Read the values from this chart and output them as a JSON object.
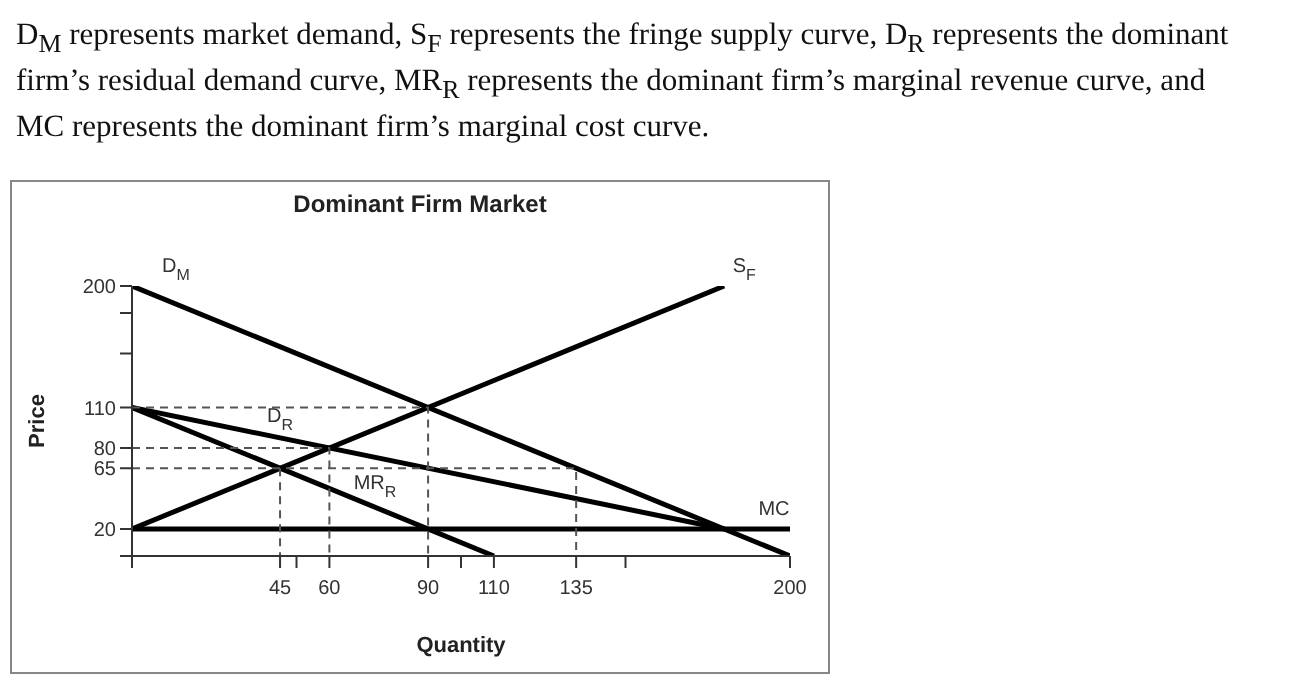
{
  "chart_data": {
    "type": "line",
    "title": "Dominant Firm Market",
    "subtitle": "D$_{M}$ represents market demand, S$_{F}$ represents the fringe supply curve, D$_{R}$ represents the dominant firm’s residual demand curve, MR$_{R}$ represents the dominant firm’s marginal revenue curve, and MC represents the dominant firm’s marginal cost curve.",
    "xlabel": "Quantity",
    "ylabel": "Price",
    "xlim": [
      0,
      200
    ],
    "ylim": [
      0,
      200
    ],
    "xticks": [
      {
        "value": 0,
        "label": null
      },
      45,
      {
        "value": 50,
        "label": null
      },
      60,
      90,
      {
        "value": 100,
        "label": null
      },
      110,
      135,
      {
        "value": 150,
        "label": null
      },
      200
    ],
    "yticks": [
      {
        "value": 0,
        "label": null
      },
      20,
      65,
      80,
      110,
      {
        "value": 150,
        "label": null
      },
      {
        "value": 180,
        "label": null
      },
      200
    ],
    "marker": "none",
    "series": [
      {
        "name": "D$_{M}$",
        "color": "#000000",
        "x": [
          0,
          200
        ],
        "values": [
          200,
          0
        ]
      },
      {
        "name": "S$_{F}$",
        "color": "#000000",
        "x": [
          0,
          180
        ],
        "values": [
          20,
          200
        ]
      },
      {
        "name": "D$_{R}$",
        "color": "#000000",
        "x": [
          0,
          180
        ],
        "values": [
          110,
          20
        ]
      },
      {
        "name": "MR$_{R}$",
        "color": "#000000",
        "x": [
          0,
          110
        ],
        "values": [
          110,
          0
        ]
      },
      {
        "name": "MC",
        "color": "#000000",
        "x": [
          0,
          200
        ],
        "values": [
          20,
          20
        ]
      },
      {
        "color": "#555555",
        "line_style": "dashed",
        "x": [
          0,
          90,
          90
        ],
        "values": [
          110,
          110,
          0
        ]
      },
      {
        "color": "#555555",
        "line_style": "dashed",
        "x": [
          0,
          60,
          60
        ],
        "values": [
          80,
          80,
          0
        ]
      },
      {
        "color": "#555555",
        "line_style": "dashed",
        "x": [
          0,
          135,
          135
        ],
        "values": [
          65,
          65,
          0
        ]
      },
      {
        "color": "#555555",
        "line_style": "dashed",
        "x": [
          45,
          45
        ],
        "values": [
          65,
          0
        ]
      }
    ]
  }
}
